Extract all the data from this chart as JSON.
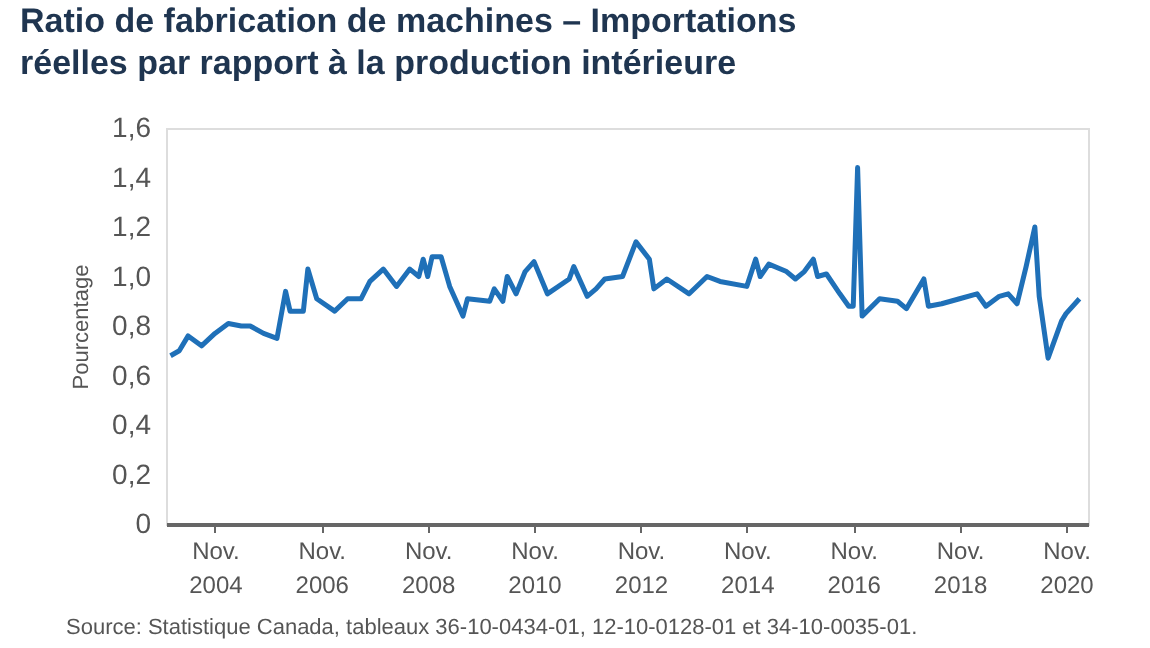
{
  "chart_data": {
    "type": "line",
    "title": "Ratio de fabrication de machines – Importations réelles par rapport à la production intérieure",
    "ylabel": "Pourcentage",
    "x": [
      "2004-01",
      "2004-03",
      "2004-05",
      "2004-08",
      "2004-11",
      "2005-02",
      "2005-05",
      "2005-07",
      "2005-10",
      "2006-01",
      "2006-03",
      "2006-04",
      "2006-07",
      "2006-08",
      "2006-10",
      "2007-02",
      "2007-05",
      "2007-08",
      "2007-10",
      "2008-01",
      "2008-04",
      "2008-07",
      "2008-09",
      "2008-10",
      "2008-11",
      "2008-12",
      "2009-02",
      "2009-04",
      "2009-07",
      "2009-08",
      "2010-01",
      "2010-02",
      "2010-04",
      "2010-05",
      "2010-07",
      "2010-09",
      "2010-11",
      "2011-02",
      "2011-07",
      "2011-08",
      "2011-11",
      "2012-01",
      "2012-03",
      "2012-07",
      "2012-10",
      "2013-01",
      "2013-02",
      "2013-05",
      "2013-10",
      "2014-02",
      "2014-05",
      "2014-11",
      "2015-01",
      "2015-02",
      "2015-04",
      "2015-08",
      "2015-10",
      "2015-12",
      "2016-02",
      "2016-03",
      "2016-05",
      "2016-08",
      "2016-10",
      "2016-11",
      "2016-12",
      "2017-01",
      "2017-05",
      "2017-09",
      "2017-11",
      "2018-03",
      "2018-04",
      "2018-07",
      "2018-11",
      "2019-03",
      "2019-05",
      "2019-08",
      "2019-10",
      "2019-12",
      "2020-02",
      "2020-04",
      "2020-05",
      "2020-07",
      "2020-10",
      "2020-11",
      "2021-02"
    ],
    "series": [
      {
        "color": "#1f70b8",
        "values": [
          0.68,
          0.7,
          0.76,
          0.72,
          0.77,
          0.81,
          0.8,
          0.8,
          0.77,
          0.75,
          0.94,
          0.86,
          0.86,
          1.03,
          0.91,
          0.86,
          0.91,
          0.91,
          0.98,
          1.03,
          0.96,
          1.03,
          1.0,
          1.07,
          1.0,
          1.08,
          1.08,
          0.96,
          0.84,
          0.91,
          0.9,
          0.95,
          0.9,
          1.0,
          0.93,
          1.02,
          1.06,
          0.93,
          0.99,
          1.04,
          0.92,
          0.95,
          0.99,
          1.0,
          1.14,
          1.07,
          0.95,
          0.99,
          0.93,
          1.0,
          0.98,
          0.96,
          1.07,
          1.0,
          1.05,
          1.02,
          0.99,
          1.02,
          1.07,
          1.0,
          1.01,
          0.93,
          0.88,
          0.88,
          1.44,
          0.84,
          0.91,
          0.9,
          0.87,
          0.99,
          0.88,
          0.89,
          0.91,
          0.93,
          0.88,
          0.92,
          0.93,
          0.89,
          1.04,
          1.2,
          0.92,
          0.67,
          0.82,
          0.85,
          0.91
        ]
      }
    ],
    "xlim": [
      "2003-12",
      "2021-04"
    ],
    "xticks": [
      {
        "value": "2004-11",
        "label": "Nov. 2004"
      },
      {
        "value": "2006-11",
        "label": "Nov. 2006"
      },
      {
        "value": "2008-11",
        "label": "Nov. 2008"
      },
      {
        "value": "2010-11",
        "label": "Nov. 2010"
      },
      {
        "value": "2012-11",
        "label": "Nov. 2012"
      },
      {
        "value": "2014-11",
        "label": "Nov. 2014"
      },
      {
        "value": "2016-11",
        "label": "Nov. 2016"
      },
      {
        "value": "2018-11",
        "label": "Nov. 2018"
      },
      {
        "value": "2020-11",
        "label": "Nov. 2020"
      }
    ],
    "ylim": [
      0,
      1.6
    ],
    "yticks": [
      0,
      {
        "value": 0.2,
        "label": "0,2"
      },
      {
        "value": 0.4,
        "label": "0,4"
      },
      {
        "value": 0.6,
        "label": "0,6"
      },
      {
        "value": 0.8,
        "label": "0,8"
      },
      {
        "value": 1.0,
        "label": "1,0"
      },
      {
        "value": 1.2,
        "label": "1,2"
      },
      {
        "value": 1.4,
        "label": "1,4"
      },
      {
        "value": 1.6,
        "label": "1,6"
      }
    ],
    "grid": false,
    "line_style": "solid",
    "marker": "none",
    "annotations": [
      "Source: Statistique Canada, tableaux 36-10-0434-01, 12-10-0128-01 et 34-10-0035-01."
    ]
  }
}
